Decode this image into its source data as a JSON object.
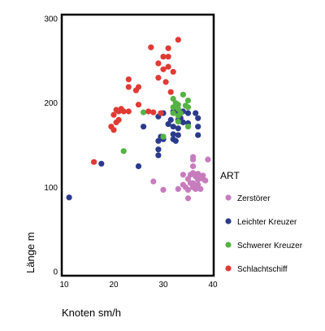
{
  "chart_data": {
    "type": "scatter",
    "xlabel": "Knoten sm/h",
    "ylabel": "Länge m",
    "xlim": [
      10,
      40
    ],
    "ylim": [
      0,
      300
    ],
    "x_ticks": [
      10,
      20,
      30,
      40
    ],
    "y_ticks": [
      0,
      100,
      200,
      300
    ],
    "grid": false,
    "legend": {
      "title": "ART",
      "position": "right"
    },
    "series": [
      {
        "name": "Zerstörer",
        "color": "#c77cbd",
        "points": [
          [
            28,
            107
          ],
          [
            30,
            97
          ],
          [
            33,
            98
          ],
          [
            34,
            115
          ],
          [
            34,
            103
          ],
          [
            34.5,
            100
          ],
          [
            35,
            97
          ],
          [
            35,
            87
          ],
          [
            35,
            110
          ],
          [
            35.5,
            115
          ],
          [
            35.5,
            105
          ],
          [
            36,
            100
          ],
          [
            36,
            105
          ],
          [
            36,
            117
          ],
          [
            36,
            125
          ],
          [
            36,
            133
          ],
          [
            36,
            136
          ],
          [
            36.5,
            113
          ],
          [
            36.5,
            98
          ],
          [
            37,
            103
          ],
          [
            37,
            109
          ],
          [
            37,
            112
          ],
          [
            37,
            116
          ],
          [
            37.5,
            98
          ],
          [
            38,
            110
          ],
          [
            38,
            114
          ],
          [
            38.5,
            108
          ],
          [
            39,
            133
          ]
        ]
      },
      {
        "name": "Leichter Kreuzer",
        "color": "#2b3b8c",
        "points": [
          [
            11,
            88
          ],
          [
            17.5,
            128
          ],
          [
            25,
            125
          ],
          [
            26,
            172
          ],
          [
            29,
            184
          ],
          [
            29,
            155
          ],
          [
            29,
            145
          ],
          [
            29,
            138
          ],
          [
            29.5,
            160
          ],
          [
            30,
            188
          ],
          [
            30,
            157
          ],
          [
            31,
            175
          ],
          [
            31.5,
            180
          ],
          [
            32,
            190
          ],
          [
            32,
            172
          ],
          [
            32,
            163
          ],
          [
            32,
            157
          ],
          [
            32.5,
            155
          ],
          [
            33,
            180
          ],
          [
            33,
            170
          ],
          [
            33,
            162
          ],
          [
            33,
            190
          ],
          [
            33.5,
            182
          ],
          [
            34,
            177
          ],
          [
            34,
            190
          ],
          [
            35,
            188
          ],
          [
            35,
            176
          ],
          [
            36.5,
            188
          ],
          [
            37,
            182
          ],
          [
            37,
            172
          ],
          [
            37,
            162
          ]
        ]
      },
      {
        "name": "Schwerer Kreuzer",
        "color": "#55b244",
        "points": [
          [
            22,
            143
          ],
          [
            26,
            189
          ],
          [
            30,
            160
          ],
          [
            32,
            205
          ],
          [
            32,
            195
          ],
          [
            32,
            188
          ],
          [
            32.5,
            200
          ],
          [
            33,
            185
          ],
          [
            33,
            178
          ],
          [
            33,
            193
          ],
          [
            33,
            198
          ],
          [
            33.5,
            188
          ],
          [
            34,
            210
          ],
          [
            34.5,
            197
          ],
          [
            35,
            203
          ],
          [
            35,
            195
          ],
          [
            35,
            172
          ]
        ]
      },
      {
        "name": "Schlachtschiff",
        "color": "#e03a34",
        "points": [
          [
            16,
            130
          ],
          [
            19.5,
            172
          ],
          [
            20,
            168
          ],
          [
            20,
            186
          ],
          [
            20.5,
            177
          ],
          [
            20.5,
            192
          ],
          [
            21,
            190
          ],
          [
            21,
            180
          ],
          [
            21.5,
            193
          ],
          [
            22,
            190
          ],
          [
            23,
            219
          ],
          [
            23,
            228
          ],
          [
            23,
            190
          ],
          [
            24.5,
            215
          ],
          [
            25,
            198
          ],
          [
            25,
            219
          ],
          [
            27,
            190
          ],
          [
            28,
            189
          ],
          [
            27.5,
            266
          ],
          [
            29,
            247
          ],
          [
            29,
            230
          ],
          [
            30,
            255
          ],
          [
            30,
            240
          ],
          [
            30.5,
            225
          ],
          [
            31,
            255
          ],
          [
            31,
            243
          ],
          [
            31,
            265
          ],
          [
            31.5,
            213
          ],
          [
            32,
            237
          ],
          [
            33,
            275
          ],
          [
            29.5,
            188
          ]
        ]
      }
    ]
  }
}
